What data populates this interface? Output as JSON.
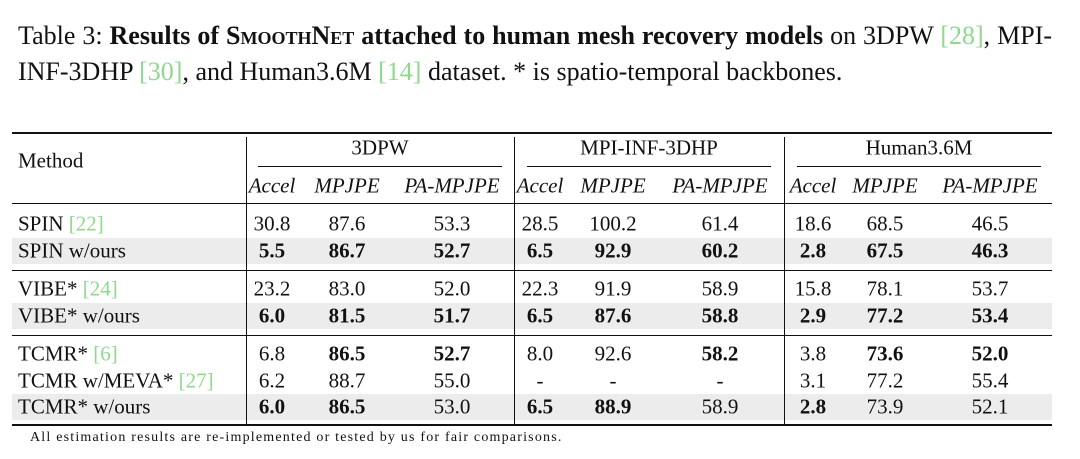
{
  "caption": {
    "label": "Table 3:",
    "title": [
      "Results of",
      "SmoothNet",
      "attached to human mesh recovery models"
    ],
    "body": [
      "on 3DPW",
      "[28]",
      ", MPI-INF-3DHP",
      "[30]",
      ", and Human3.6M",
      "[14]",
      "dataset. * is spatio-temporal backbones."
    ]
  },
  "table": {
    "method_header": "Method",
    "datasets": [
      "3DPW",
      "MPI-INF-3DHP",
      "Human3.6M"
    ],
    "metrics": [
      "Accel",
      "MPJPE",
      "PA-MPJPE",
      "Accel",
      "MPJPE",
      "PA-MPJPE",
      "Accel",
      "MPJPE",
      "PA-MPJPE"
    ],
    "groups": [
      [
        {
          "method": "SPIN",
          "ref": "[22]",
          "cells": [
            "30.8",
            "87.6",
            "53.3",
            "28.5",
            "100.2",
            "61.4",
            "18.6",
            "68.5",
            "46.5"
          ],
          "bold": []
        },
        {
          "method": "SPIN w/ours",
          "cells": [
            "5.5",
            "86.7",
            "52.7",
            "6.5",
            "92.9",
            "60.2",
            "2.8",
            "67.5",
            "46.3"
          ],
          "bold": [
            0,
            1,
            2,
            3,
            4,
            5,
            6,
            7,
            8
          ],
          "shaded": true
        }
      ],
      [
        {
          "method": "VIBE*",
          "ref": "[24]",
          "cells": [
            "23.2",
            "83.0",
            "52.0",
            "22.3",
            "91.9",
            "58.9",
            "15.8",
            "78.1",
            "53.7"
          ],
          "bold": []
        },
        {
          "method": "VIBE* w/ours",
          "cells": [
            "6.0",
            "81.5",
            "51.7",
            "6.5",
            "87.6",
            "58.8",
            "2.9",
            "77.2",
            "53.4"
          ],
          "bold": [
            0,
            1,
            2,
            3,
            4,
            5,
            6,
            7,
            8
          ],
          "shaded": true
        }
      ],
      [
        {
          "method": "TCMR*",
          "ref": "[6]",
          "cells": [
            "6.8",
            "86.5",
            "52.7",
            "8.0",
            "92.6",
            "58.2",
            "3.8",
            "73.6",
            "52.0"
          ],
          "bold": [
            1,
            2,
            5,
            7,
            8
          ]
        },
        {
          "method": "TCMR w/MEVA*",
          "ref": "[27]",
          "cells": [
            "6.2",
            "88.7",
            "55.0",
            "-",
            "-",
            "-",
            "3.1",
            "77.2",
            "55.4"
          ],
          "bold": []
        },
        {
          "method": "TCMR* w/ours",
          "cells": [
            "6.0",
            "86.5",
            "53.0",
            "6.5",
            "88.9",
            "58.9",
            "2.8",
            "73.9",
            "52.1"
          ],
          "bold": [
            0,
            1,
            3,
            4,
            6
          ],
          "shaded": true
        }
      ]
    ]
  },
  "footnote": "All estimation results are re-implemented or tested by us for fair comparisons."
}
